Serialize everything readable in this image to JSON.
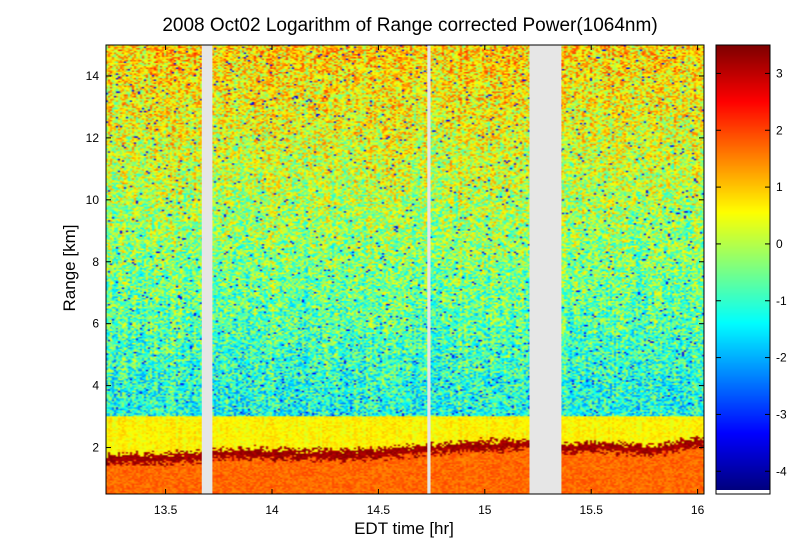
{
  "chart_data": {
    "type": "heatmap",
    "title": "2008 Oct02  Logarithm of Range corrected Power(1064nm)",
    "xlabel": "EDT time [hr]",
    "ylabel": "Range [km]",
    "xlim": [
      13.22,
      16.03
    ],
    "ylim": [
      0.5,
      15.0
    ],
    "xticks": [
      13.5,
      14,
      14.5,
      15,
      15.5,
      16
    ],
    "xtick_labels": [
      "13.5",
      "14",
      "14.5",
      "15",
      "15.5",
      "16"
    ],
    "yticks": [
      2,
      4,
      6,
      8,
      10,
      12,
      14
    ],
    "ytick_labels": [
      "2",
      "4",
      "6",
      "8",
      "10",
      "12",
      "14"
    ],
    "colorbar": {
      "clim": [
        -4.4,
        3.5
      ],
      "ticks": [
        3,
        2,
        1,
        0,
        -1,
        -2,
        -3,
        -4
      ],
      "tick_labels": [
        "3",
        "2",
        "1",
        "0",
        "-1",
        "-2",
        "-3",
        "-4"
      ],
      "colormap": "jet"
    },
    "data_gaps_hr": [
      [
        13.67,
        13.72
      ],
      [
        14.73,
        14.745
      ],
      [
        15.21,
        15.36
      ]
    ],
    "gap_color": "#e6e6e6",
    "boundary_layer_top_km": [
      {
        "t": 13.22,
        "z": 1.75
      },
      {
        "t": 13.5,
        "z": 1.8
      },
      {
        "t": 13.67,
        "z": 1.85
      },
      {
        "t": 13.72,
        "z": 1.95
      },
      {
        "t": 14.0,
        "z": 1.95
      },
      {
        "t": 14.3,
        "z": 1.9
      },
      {
        "t": 14.5,
        "z": 1.95
      },
      {
        "t": 14.73,
        "z": 2.1
      },
      {
        "t": 14.745,
        "z": 2.1
      },
      {
        "t": 15.0,
        "z": 2.2
      },
      {
        "t": 15.21,
        "z": 2.25
      },
      {
        "t": 15.36,
        "z": 2.1
      },
      {
        "t": 15.5,
        "z": 2.2
      },
      {
        "t": 15.8,
        "z": 2.05
      },
      {
        "t": 16.03,
        "z": 2.35
      }
    ]
  }
}
